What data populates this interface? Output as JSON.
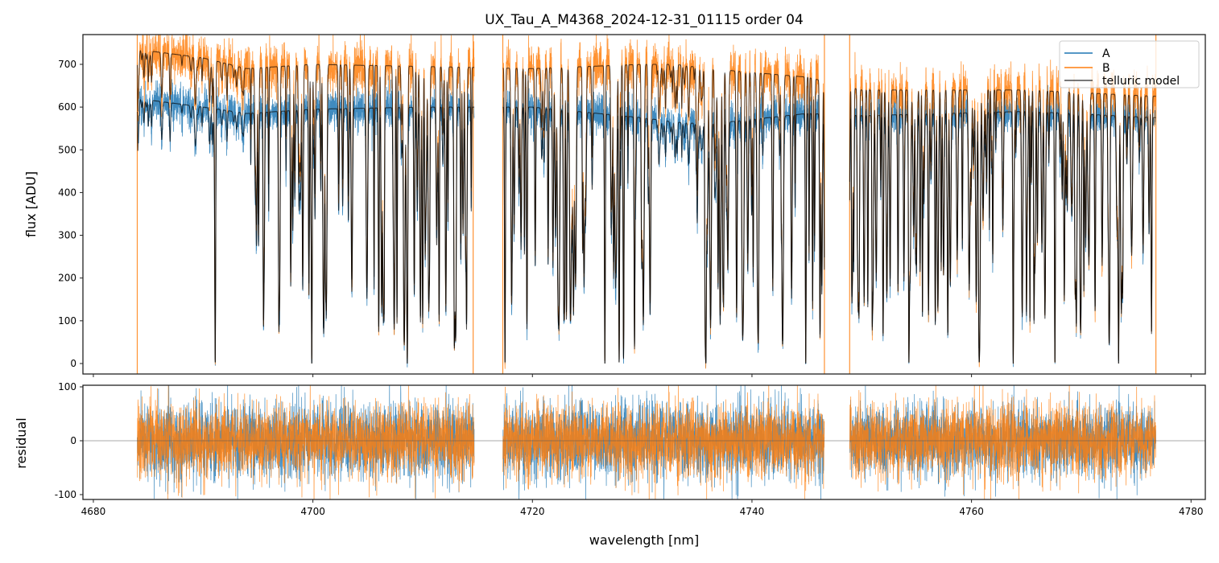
{
  "chart_data": [
    {
      "type": "line",
      "title": "UX_Tau_A_M4368_2024-12-31_01115  order 04",
      "xlabel": "",
      "ylabel": "flux [ADU]",
      "xlim": [
        4679.05,
        4781.3
      ],
      "ylim": [
        -24.5,
        769.6
      ],
      "xticks": [
        4680,
        4700,
        4720,
        4740,
        4760,
        4780
      ],
      "yticks": [
        0,
        100,
        200,
        300,
        400,
        500,
        600,
        700
      ],
      "legend": {
        "placement": "top-right",
        "entries": [
          "A",
          "B",
          "telluric model"
        ]
      },
      "series": [
        {
          "name": "A",
          "color": "#1f77b4",
          "continuum": [
            [
              4684,
              620
            ],
            [
              4690,
              600
            ],
            [
              4694,
              585
            ],
            [
              4700,
              595
            ],
            [
              4710,
              600
            ],
            [
              4720,
              600
            ],
            [
              4730,
              575
            ],
            [
              4733,
              565
            ],
            [
              4736,
              560
            ],
            [
              4745,
              585
            ],
            [
              4750,
              580
            ],
            [
              4765,
              590
            ],
            [
              4777,
              575
            ]
          ],
          "noise_std": 22
        },
        {
          "name": "B",
          "color": "#ff7f0e",
          "continuum": [
            [
              4684,
              735
            ],
            [
              4690,
              715
            ],
            [
              4694,
              690
            ],
            [
              4700,
              700
            ],
            [
              4710,
              695
            ],
            [
              4720,
              690
            ],
            [
              4730,
              700
            ],
            [
              4733,
              700
            ],
            [
              4736,
              690
            ],
            [
              4745,
              670
            ],
            [
              4750,
              640
            ],
            [
              4765,
              640
            ],
            [
              4777,
              625
            ]
          ],
          "noise_std": 28
        },
        {
          "name": "telluric model",
          "color": "#000000"
        }
      ],
      "data_range": [
        4684.0,
        4776.8
      ],
      "gaps": [
        [
          4714.7,
          4717.3
        ],
        [
          4746.6,
          4748.9
        ]
      ],
      "spikes": [
        4684.0,
        4714.6,
        4717.3,
        4746.6,
        4748.9,
        4776.8
      ],
      "deep_lines": [
        [
          4691.1,
          1.0
        ],
        [
          4695.5,
          0.82
        ],
        [
          4699.9,
          1.0
        ],
        [
          4706.0,
          0.88
        ],
        [
          4707.4,
          0.78
        ],
        [
          4708.6,
          1.0
        ],
        [
          4710.0,
          0.85
        ],
        [
          4714.0,
          0.85
        ],
        [
          4717.5,
          1.0
        ],
        [
          4719.5,
          0.87
        ],
        [
          4723.1,
          0.83
        ],
        [
          4726.6,
          1.0
        ],
        [
          4727.9,
          1.0
        ],
        [
          4728.3,
          0.98
        ],
        [
          4729.3,
          0.94
        ],
        [
          4735.8,
          1.0
        ],
        [
          4741.9,
          0.68
        ],
        [
          4744.9,
          1.0
        ],
        [
          4746.2,
          0.9
        ],
        [
          4754.3,
          1.0
        ],
        [
          4756.7,
          0.85
        ],
        [
          4760.7,
          0.97
        ],
        [
          4763.8,
          1.0
        ],
        [
          4767.6,
          1.0
        ],
        [
          4773.4,
          1.0
        ],
        [
          4776.4,
          0.88
        ]
      ],
      "random_lines": {
        "seed": 7,
        "count": 330,
        "depth_range": [
          0.15,
          0.85
        ],
        "quiet_regions": [
          [
            4684,
            4694
          ],
          [
            4731,
            4735.5
          ]
        ]
      }
    },
    {
      "type": "line",
      "title": "",
      "xlabel": "wavelength [nm]",
      "ylabel": "residual",
      "xlim": [
        4679.05,
        4781.3
      ],
      "ylim": [
        -109,
        103
      ],
      "xticks": [
        4680,
        4700,
        4720,
        4740,
        4760,
        4780
      ],
      "yticks": [
        -100,
        0,
        100
      ],
      "reference_line": 0,
      "series": [
        {
          "name": "A",
          "color": "#1f77b4",
          "noise_std": 34
        },
        {
          "name": "B",
          "color": "#ff7f0e",
          "noise_std": 34
        }
      ]
    }
  ]
}
